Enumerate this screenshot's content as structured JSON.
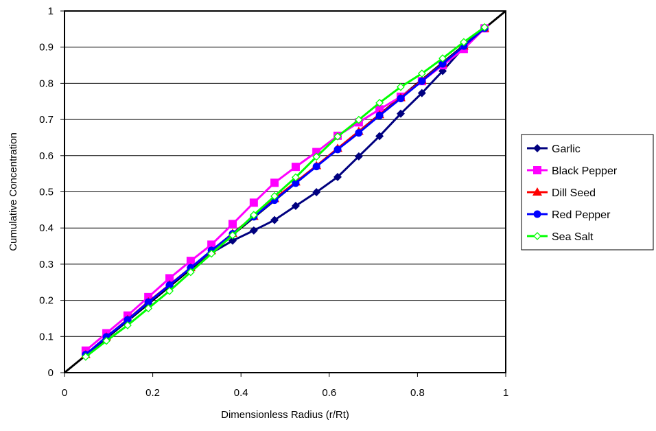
{
  "chart_data": {
    "type": "line",
    "title": "",
    "xlabel": "Dimensionless Radius (r/Rt)",
    "ylabel": "Cumulative Concentration",
    "xlim": [
      0,
      1
    ],
    "ylim": [
      0,
      1
    ],
    "xticks": [
      0,
      0.2,
      0.4,
      0.6,
      0.8,
      1
    ],
    "xtick_labels": [
      "0",
      "0.2",
      "0.4",
      "0.6",
      "0.8",
      "1"
    ],
    "yticks": [
      0,
      0.1,
      0.2,
      0.3,
      0.4,
      0.5,
      0.6,
      0.7,
      0.8,
      0.9,
      1
    ],
    "ytick_labels": [
      "0",
      "0.1",
      "0.2",
      "0.3",
      "0.4",
      "0.5",
      "0.6",
      "0.7",
      "0.8",
      "0.9",
      "1"
    ],
    "grid": "horizontal",
    "legend_position": "right",
    "diagonal_reference": {
      "x": [
        0,
        1
      ],
      "y": [
        0,
        1
      ],
      "color": "#000000"
    },
    "x": [
      0.048,
      0.095,
      0.143,
      0.19,
      0.238,
      0.286,
      0.333,
      0.381,
      0.429,
      0.476,
      0.524,
      0.571,
      0.619,
      0.667,
      0.714,
      0.762,
      0.81,
      0.857,
      0.905,
      0.952
    ],
    "series": [
      {
        "name": "Garlic",
        "color": "#00007F",
        "marker": "diamond",
        "values": [
          0.048,
          0.097,
          0.145,
          0.193,
          0.242,
          0.29,
          0.331,
          0.365,
          0.393,
          0.422,
          0.461,
          0.499,
          0.541,
          0.598,
          0.654,
          0.716,
          0.773,
          0.834,
          0.9,
          0.952
        ]
      },
      {
        "name": "Black Pepper",
        "color": "#FF00FF",
        "marker": "square",
        "values": [
          0.061,
          0.109,
          0.158,
          0.209,
          0.261,
          0.309,
          0.354,
          0.411,
          0.47,
          0.525,
          0.569,
          0.61,
          0.655,
          0.692,
          0.728,
          0.763,
          0.806,
          0.85,
          0.895,
          0.952
        ]
      },
      {
        "name": "Dill Seed",
        "color": "#FF0000",
        "marker": "triangle",
        "values": [
          0.05,
          0.099,
          0.147,
          0.196,
          0.243,
          0.29,
          0.337,
          0.385,
          0.432,
          0.481,
          0.527,
          0.572,
          0.62,
          0.667,
          0.713,
          0.76,
          0.808,
          0.855,
          0.903,
          0.952
        ]
      },
      {
        "name": "Red Pepper",
        "color": "#0000FF",
        "marker": "circle",
        "values": [
          0.05,
          0.099,
          0.146,
          0.195,
          0.242,
          0.29,
          0.338,
          0.384,
          0.431,
          0.477,
          0.524,
          0.57,
          0.617,
          0.663,
          0.711,
          0.758,
          0.806,
          0.854,
          0.903,
          0.952
        ]
      },
      {
        "name": "Sea Salt",
        "color": "#00FF00",
        "marker": "open-diamond",
        "values": [
          0.044,
          0.088,
          0.131,
          0.178,
          0.226,
          0.278,
          0.329,
          0.38,
          0.436,
          0.488,
          0.54,
          0.597,
          0.653,
          0.699,
          0.746,
          0.79,
          0.827,
          0.869,
          0.914,
          0.955
        ]
      }
    ]
  }
}
